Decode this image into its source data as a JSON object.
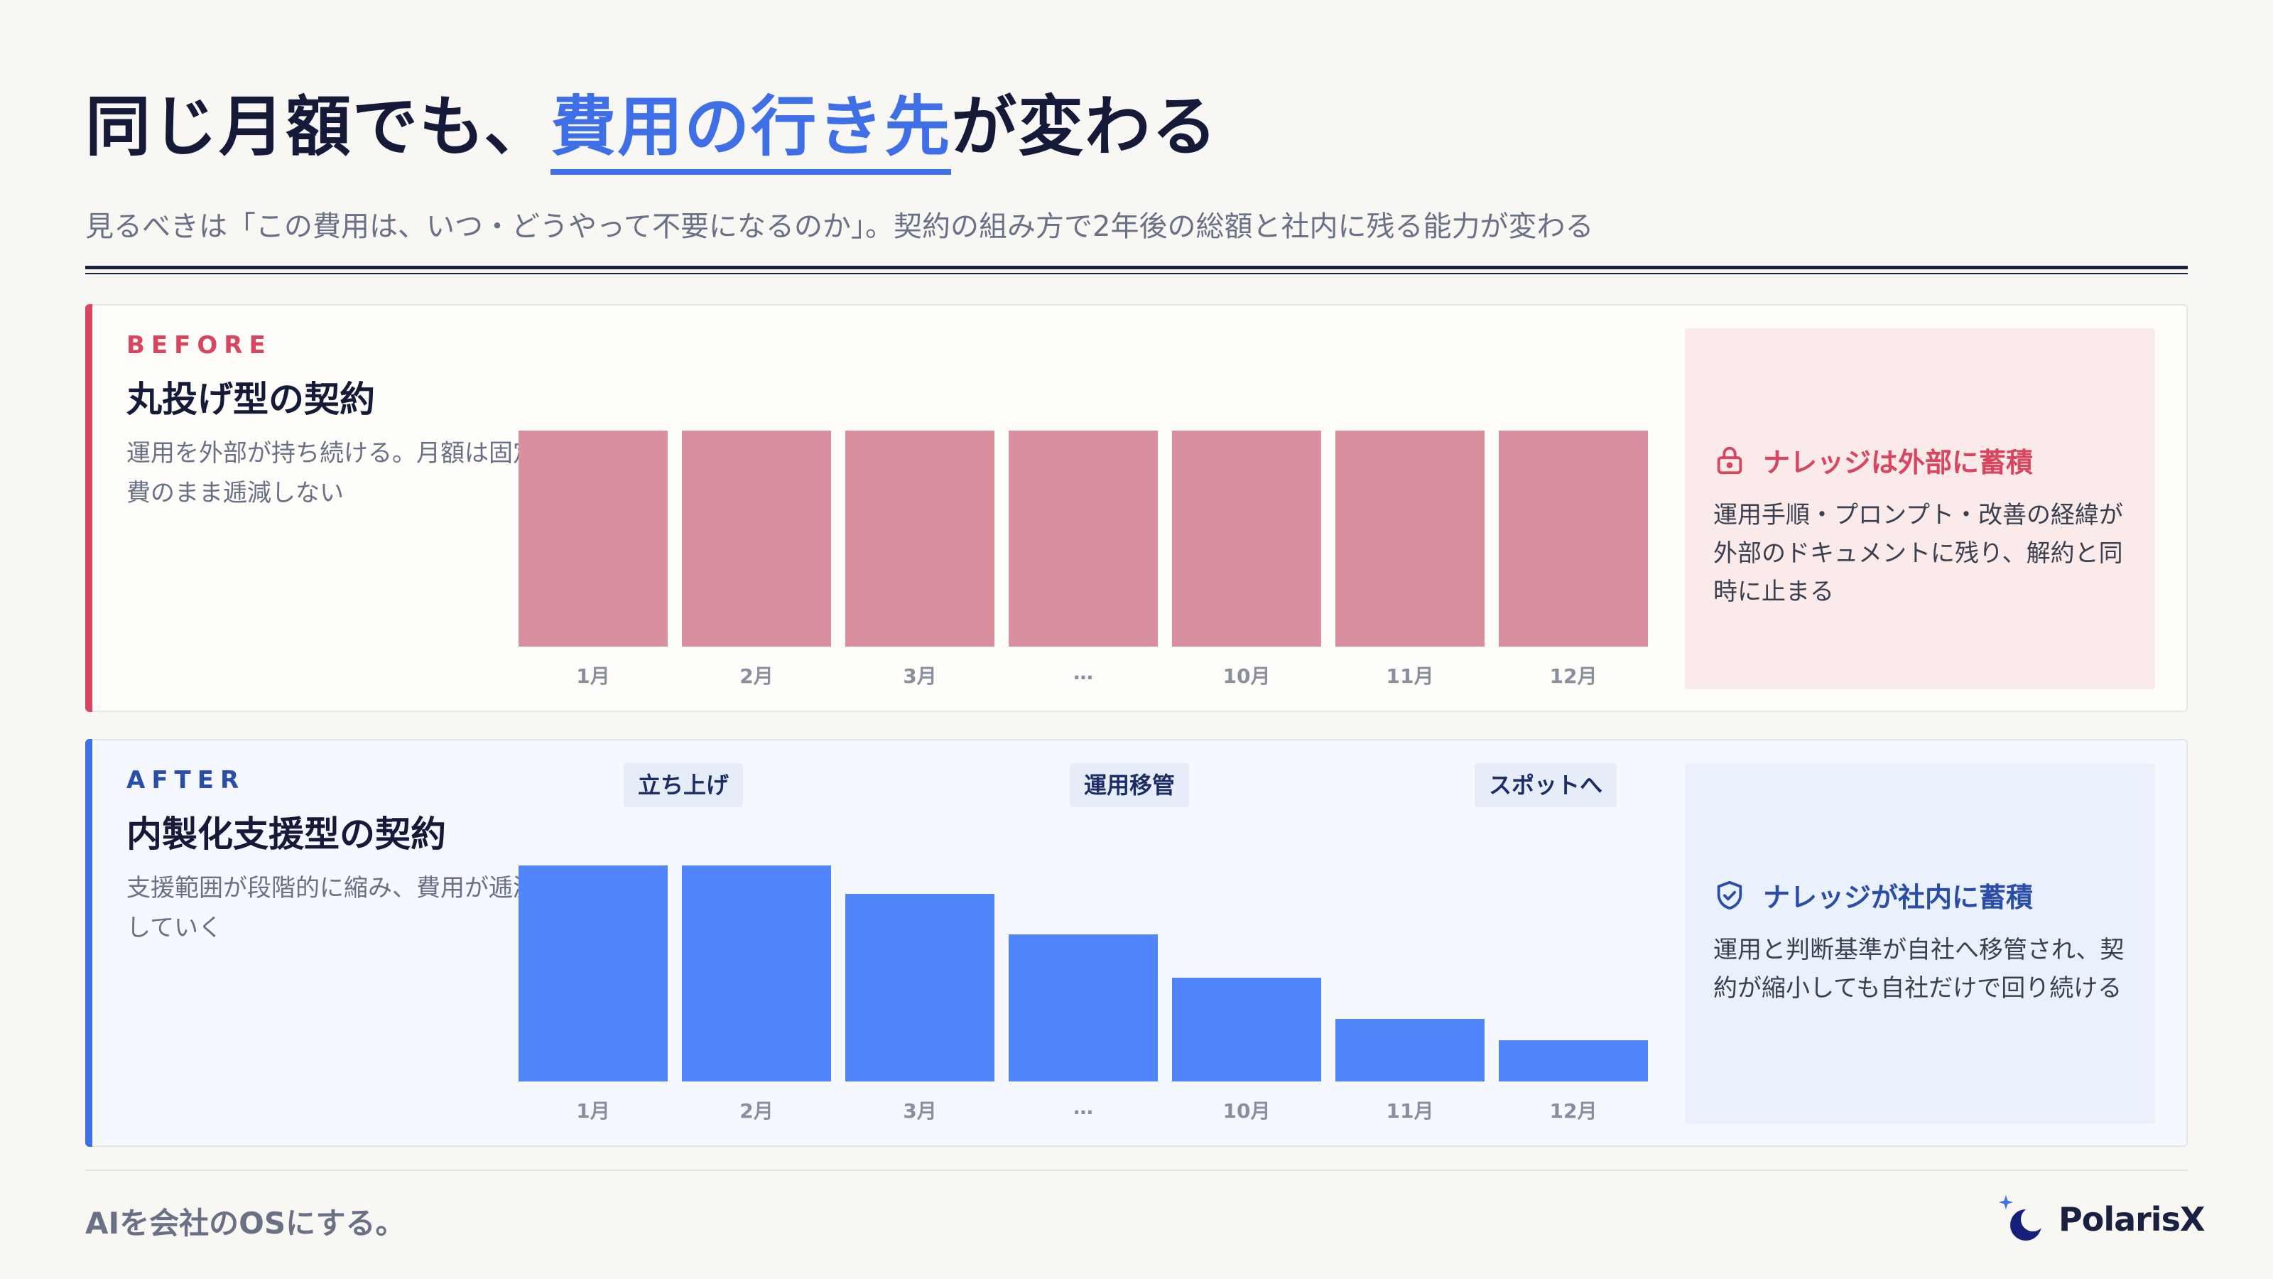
{
  "header": {
    "title_pre": "同じ月額でも、",
    "title_highlight": "費用の行き先",
    "title_post": "が変わる",
    "subtitle": "見るべきは「この費用は、いつ・どうやって不要になるのか」。契約の組み方で2年後の総額と社内に残る能力が変わる"
  },
  "before": {
    "tag": "BEFORE",
    "title": "丸投げ型の契約",
    "description": "運用を外部が持ち続ける。月額は固定費のまま逓減しない",
    "card": {
      "icon": "lock-icon",
      "heading": "ナレッジは外部に蓄積",
      "body": "運用手順・プロンプト・改善の経緯が外部のドキュメントに残り、解約と同時に止まる"
    }
  },
  "after": {
    "tag": "AFTER",
    "title": "内製化支援型の契約",
    "description": "支援範囲が段階的に縮み、費用が逓減していく",
    "phases": [
      "立ち上げ",
      "運用移管",
      "スポットへ"
    ],
    "card": {
      "icon": "shield-check-icon",
      "heading": "ナレッジが社内に蓄積",
      "body": "運用と判断基準が自社へ移管され、契約が縮小しても自社だけで回り続ける"
    }
  },
  "chart_data": [
    {
      "type": "bar",
      "categories": [
        "1月",
        "2月",
        "3月",
        "…",
        "10月",
        "11月",
        "12月"
      ],
      "values": [
        100,
        100,
        100,
        100,
        100,
        100,
        100
      ],
      "ylim": [
        0,
        100
      ],
      "color": "#d8909e"
    },
    {
      "type": "bar",
      "categories": [
        "1月",
        "2月",
        "3月",
        "…",
        "10月",
        "11月",
        "12月"
      ],
      "values": [
        100,
        100,
        87,
        68,
        48,
        29,
        19
      ],
      "ylim": [
        0,
        100
      ],
      "color": "#5085fb"
    }
  ],
  "footer": {
    "tagline": "AIを会社のOSにする。",
    "brand": "PolarisX"
  },
  "colors": {
    "accent_before": "#d9445f",
    "accent_after": "#3f6fe6",
    "ink": "#141a38"
  }
}
